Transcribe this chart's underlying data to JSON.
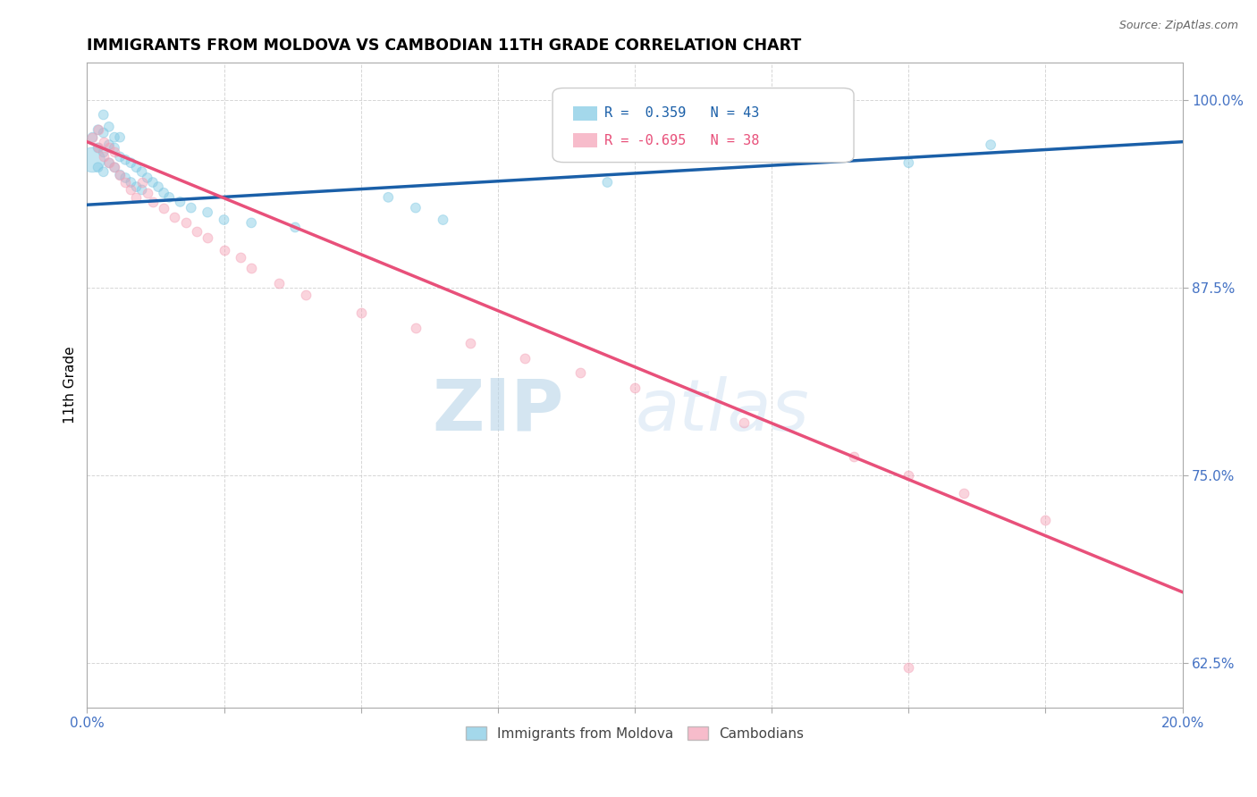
{
  "title": "IMMIGRANTS FROM MOLDOVA VS CAMBODIAN 11TH GRADE CORRELATION CHART",
  "source_text": "Source: ZipAtlas.com",
  "ylabel": "11th Grade",
  "xlim": [
    0.0,
    0.2
  ],
  "ylim": [
    0.595,
    1.025
  ],
  "xticks": [
    0.0,
    0.025,
    0.05,
    0.075,
    0.1,
    0.125,
    0.15,
    0.175,
    0.2
  ],
  "ytick_positions": [
    0.625,
    0.75,
    0.875,
    1.0
  ],
  "yticklabels": [
    "62.5%",
    "75.0%",
    "87.5%",
    "100.0%"
  ],
  "legend_r_blue": "0.359",
  "legend_n_blue": "43",
  "legend_r_pink": "-0.695",
  "legend_n_pink": "38",
  "blue_color": "#7ec8e3",
  "pink_color": "#f4a0b5",
  "trend_blue": "#1a5fa8",
  "trend_pink": "#e8507a",
  "watermark_zip": "ZIP",
  "watermark_atlas": "atlas",
  "blue_scatter_x": [
    0.001,
    0.001,
    0.002,
    0.002,
    0.002,
    0.003,
    0.003,
    0.003,
    0.003,
    0.004,
    0.004,
    0.004,
    0.005,
    0.005,
    0.005,
    0.006,
    0.006,
    0.006,
    0.007,
    0.007,
    0.008,
    0.008,
    0.009,
    0.009,
    0.01,
    0.01,
    0.011,
    0.012,
    0.013,
    0.014,
    0.015,
    0.017,
    0.019,
    0.022,
    0.025,
    0.03,
    0.038,
    0.055,
    0.06,
    0.065,
    0.095,
    0.15,
    0.165
  ],
  "blue_scatter_y": [
    0.96,
    0.975,
    0.955,
    0.968,
    0.98,
    0.952,
    0.965,
    0.978,
    0.99,
    0.958,
    0.97,
    0.982,
    0.955,
    0.968,
    0.975,
    0.95,
    0.962,
    0.975,
    0.948,
    0.96,
    0.945,
    0.958,
    0.942,
    0.955,
    0.94,
    0.952,
    0.948,
    0.945,
    0.942,
    0.938,
    0.935,
    0.932,
    0.928,
    0.925,
    0.92,
    0.918,
    0.915,
    0.935,
    0.928,
    0.92,
    0.945,
    0.958,
    0.97
  ],
  "blue_scatter_size_special": 400,
  "blue_scatter_special_idx": 0,
  "blue_scatter_regular_size": 60,
  "pink_scatter_x": [
    0.001,
    0.002,
    0.002,
    0.003,
    0.003,
    0.004,
    0.004,
    0.005,
    0.005,
    0.006,
    0.007,
    0.008,
    0.009,
    0.01,
    0.011,
    0.012,
    0.014,
    0.016,
    0.018,
    0.02,
    0.022,
    0.025,
    0.028,
    0.03,
    0.035,
    0.04,
    0.05,
    0.06,
    0.07,
    0.08,
    0.09,
    0.1,
    0.12,
    0.14,
    0.15,
    0.16,
    0.175,
    0.15
  ],
  "pink_scatter_y": [
    0.975,
    0.968,
    0.98,
    0.962,
    0.972,
    0.958,
    0.968,
    0.955,
    0.965,
    0.95,
    0.945,
    0.94,
    0.935,
    0.945,
    0.938,
    0.932,
    0.928,
    0.922,
    0.918,
    0.912,
    0.908,
    0.9,
    0.895,
    0.888,
    0.878,
    0.87,
    0.858,
    0.848,
    0.838,
    0.828,
    0.818,
    0.808,
    0.785,
    0.762,
    0.75,
    0.738,
    0.72,
    0.622
  ],
  "pink_scatter_regular_size": 60,
  "trend_blue_y0": 0.93,
  "trend_blue_y1": 0.972,
  "trend_pink_y0": 0.972,
  "trend_pink_y1": 0.672
}
